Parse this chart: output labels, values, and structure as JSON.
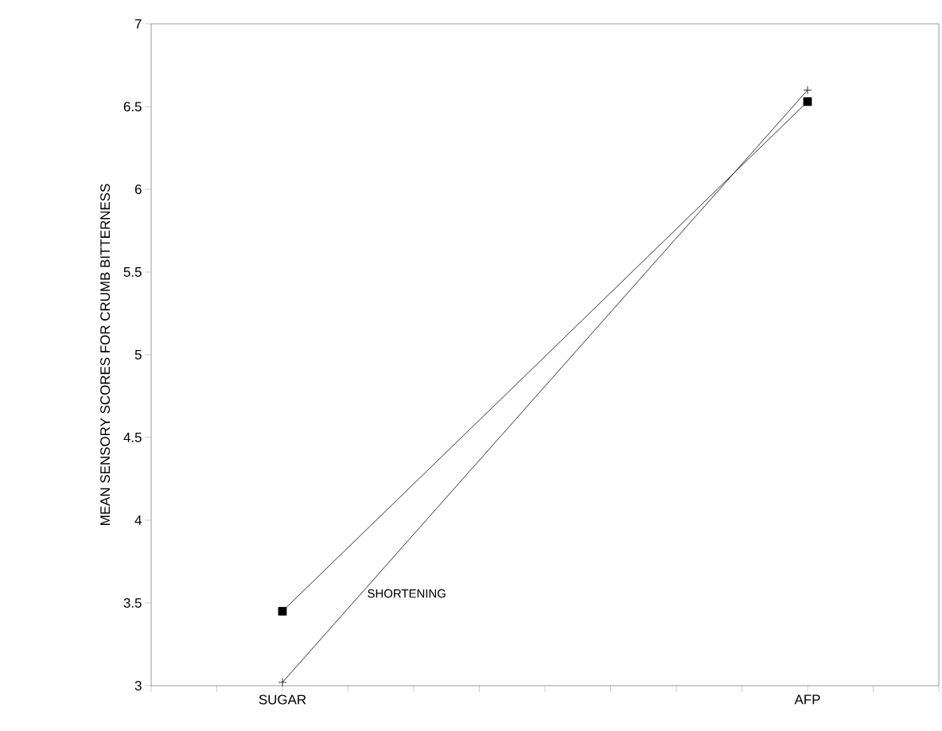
{
  "chart_data": {
    "type": "line",
    "ylabel": "MEAN SENSORY SCORES FOR CRUMB BITTERNESS",
    "categories": [
      null,
      null,
      "SUGAR",
      null,
      null,
      null,
      null,
      null,
      null,
      null,
      "AFP",
      null,
      null
    ],
    "series": [
      {
        "color": "#000000",
        "marker": "square",
        "values": [
          null,
          null,
          3.45,
          null,
          null,
          null,
          null,
          null,
          null,
          null,
          6.53,
          null,
          null
        ]
      },
      {
        "name": "SHORTENING",
        "color": "#000000",
        "marker": "cross",
        "values": [
          null,
          null,
          3.02,
          null,
          null,
          null,
          null,
          null,
          null,
          null,
          6.6,
          null,
          null
        ]
      }
    ],
    "ylim": [
      3,
      7
    ],
    "yticks": [
      3,
      3.5,
      4,
      4.5,
      5,
      5.5,
      6,
      6.5,
      7
    ],
    "grid": false,
    "legend": false
  }
}
